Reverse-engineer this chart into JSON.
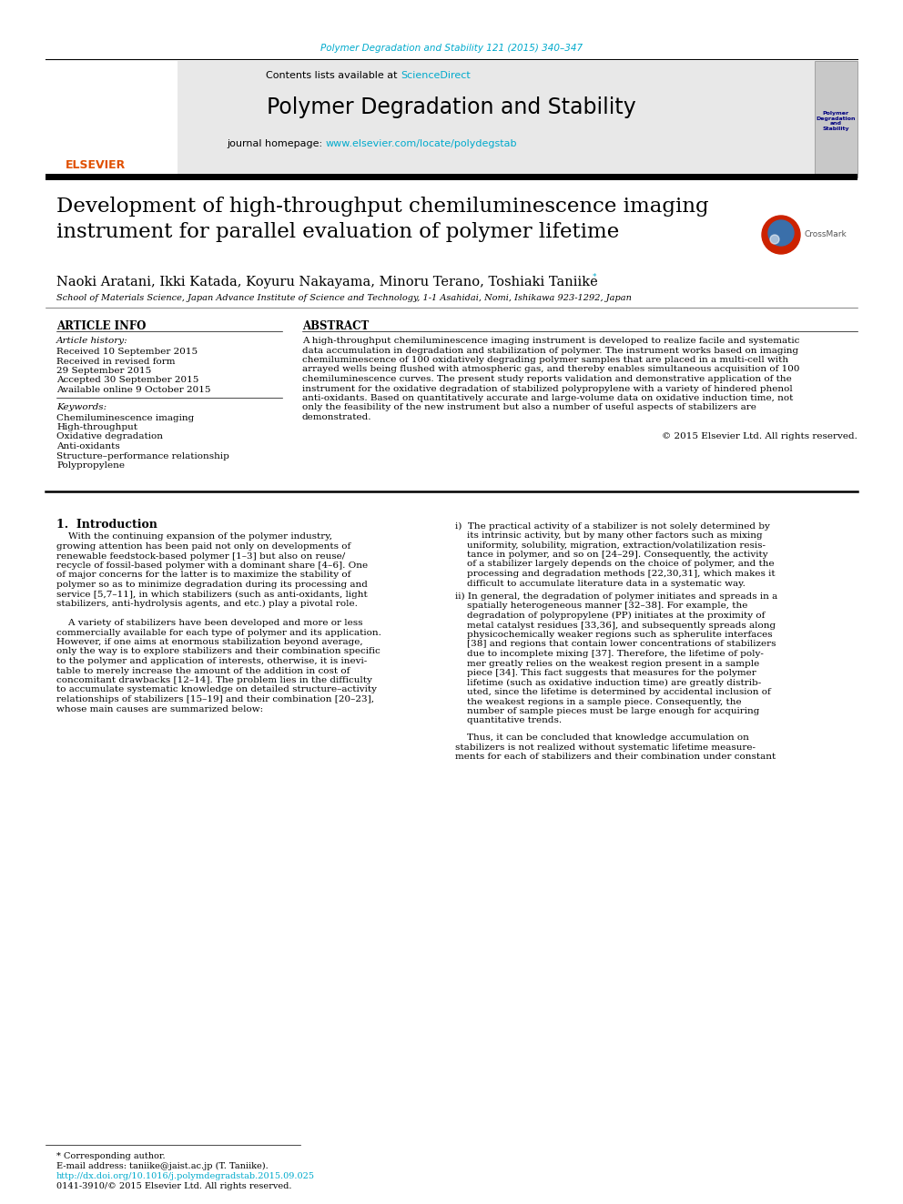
{
  "page_bg": "#ffffff",
  "header_journal_ref": "Polymer Degradation and Stability 121 (2015) 340–347",
  "header_ref_color": "#00aacc",
  "journal_name": "Polymer Degradation and Stability",
  "contents_text": "Contents lists available at ",
  "sciencedirect_text": "ScienceDirect",
  "link_color": "#00aacc",
  "journal_homepage": "journal homepage: ",
  "journal_url": "www.elsevier.com/locate/polydegstab",
  "header_bg": "#e8e8e8",
  "article_title": "Development of high-throughput chemiluminescence imaging\ninstrument for parallel evaluation of polymer lifetime",
  "authors": "Naoki Aratani, Ikki Katada, Koyuru Nakayama, Minoru Terano, Toshiaki Taniike",
  "author_star": "*",
  "affiliation": "School of Materials Science, Japan Advance Institute of Science and Technology, 1-1 Asahidai, Nomi, Ishikawa 923-1292, Japan",
  "article_info_header": "ARTICLE INFO",
  "abstract_header": "ABSTRACT",
  "article_history_label": "Article history:",
  "received_date": "Received 10 September 2015",
  "received_revised_1": "Received in revised form",
  "received_revised_2": "29 September 2015",
  "accepted": "Accepted 30 September 2015",
  "available_online": "Available online 9 October 2015",
  "keywords_label": "Keywords:",
  "keywords": [
    "Chemiluminescence imaging",
    "High-throughput",
    "Oxidative degradation",
    "Anti-oxidants",
    "Structure–performance relationship",
    "Polypropylene"
  ],
  "copyright_text": "© 2015 Elsevier Ltd. All rights reserved.",
  "intro_header": "1.  Introduction",
  "footer_star_note": "* Corresponding author.",
  "footer_email": "E-mail address: taniike@jaist.ac.jp (T. Taniike).",
  "footer_doi": "http://dx.doi.org/10.1016/j.polymdegradstab.2015.09.025",
  "footer_issn": "0141-3910/© 2015 Elsevier Ltd. All rights reserved.",
  "abstract_lines": [
    "A high-throughput chemiluminescence imaging instrument is developed to realize facile and systematic",
    "data accumulation in degradation and stabilization of polymer. The instrument works based on imaging",
    "chemiluminescence of 100 oxidatively degrading polymer samples that are placed in a multi-cell with",
    "arrayed wells being flushed with atmospheric gas, and thereby enables simultaneous acquisition of 100",
    "chemiluminescence curves. The present study reports validation and demonstrative application of the",
    "instrument for the oxidative degradation of stabilized polypropylene with a variety of hindered phenol",
    "anti-oxidants. Based on quantitatively accurate and large-volume data on oxidative induction time, not",
    "only the feasibility of the new instrument but also a number of useful aspects of stabilizers are",
    "demonstrated."
  ],
  "intro_left_lines": [
    "    With the continuing expansion of the polymer industry,",
    "growing attention has been paid not only on developments of",
    "renewable feedstock-based polymer [1–3] but also on reuse/",
    "recycle of fossil-based polymer with a dominant share [4–6]. One",
    "of major concerns for the latter is to maximize the stability of",
    "polymer so as to minimize degradation during its processing and",
    "service [5,7–11], in which stabilizers (such as anti-oxidants, light",
    "stabilizers, anti-hydrolysis agents, and etc.) play a pivotal role.",
    "",
    "    A variety of stabilizers have been developed and more or less",
    "commercially available for each type of polymer and its application.",
    "However, if one aims at enormous stabilization beyond average,",
    "only the way is to explore stabilizers and their combination specific",
    "to the polymer and application of interests, otherwise, it is inevi-",
    "table to merely increase the amount of the addition in cost of",
    "concomitant drawbacks [12–14]. The problem lies in the difficulty",
    "to accumulate systematic knowledge on detailed structure–activity",
    "relationships of stabilizers [15–19] and their combination [20–23],",
    "whose main causes are summarized below:"
  ],
  "intro_right_lines_i": [
    "i)  The practical activity of a stabilizer is not solely determined by",
    "    its intrinsic activity, but by many other factors such as mixing",
    "    uniformity, solubility, migration, extraction/volatilization resis-",
    "    tance in polymer, and so on [24–29]. Consequently, the activity",
    "    of a stabilizer largely depends on the choice of polymer, and the",
    "    processing and degradation methods [22,30,31], which makes it",
    "    difficult to accumulate literature data in a systematic way."
  ],
  "intro_right_lines_ii": [
    "ii) In general, the degradation of polymer initiates and spreads in a",
    "    spatially heterogeneous manner [32–38]. For example, the",
    "    degradation of polypropylene (PP) initiates at the proximity of",
    "    metal catalyst residues [33,36], and subsequently spreads along",
    "    physicochemically weaker regions such as spherulite interfaces",
    "    [38] and regions that contain lower concentrations of stabilizers",
    "    due to incomplete mixing [37]. Therefore, the lifetime of poly-",
    "    mer greatly relies on the weakest region present in a sample",
    "    piece [34]. This fact suggests that measures for the polymer",
    "    lifetime (such as oxidative induction time) are greatly distrib-",
    "    uted, since the lifetime is determined by accidental inclusion of",
    "    the weakest regions in a sample piece. Consequently, the",
    "    number of sample pieces must be large enough for acquiring",
    "    quantitative trends."
  ],
  "intro_right_lines_conclusion": [
    "    Thus, it can be concluded that knowledge accumulation on",
    "stabilizers is not realized without systematic lifetime measure-",
    "ments for each of stabilizers and their combination under constant"
  ],
  "divider_color": "#000000",
  "text_color": "#000000"
}
